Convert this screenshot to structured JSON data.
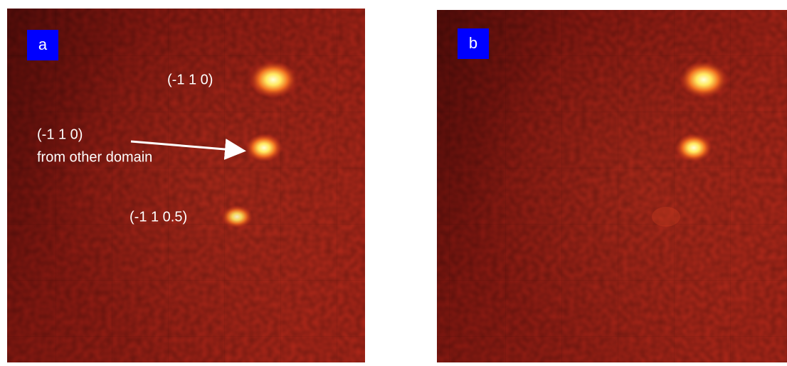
{
  "panels": [
    {
      "label": "a",
      "annotations": [
        "(-1 1 0)",
        "(-1 1 0)",
        "from other domain",
        "(-1 1 0.5)"
      ]
    },
    {
      "label": "b"
    }
  ]
}
